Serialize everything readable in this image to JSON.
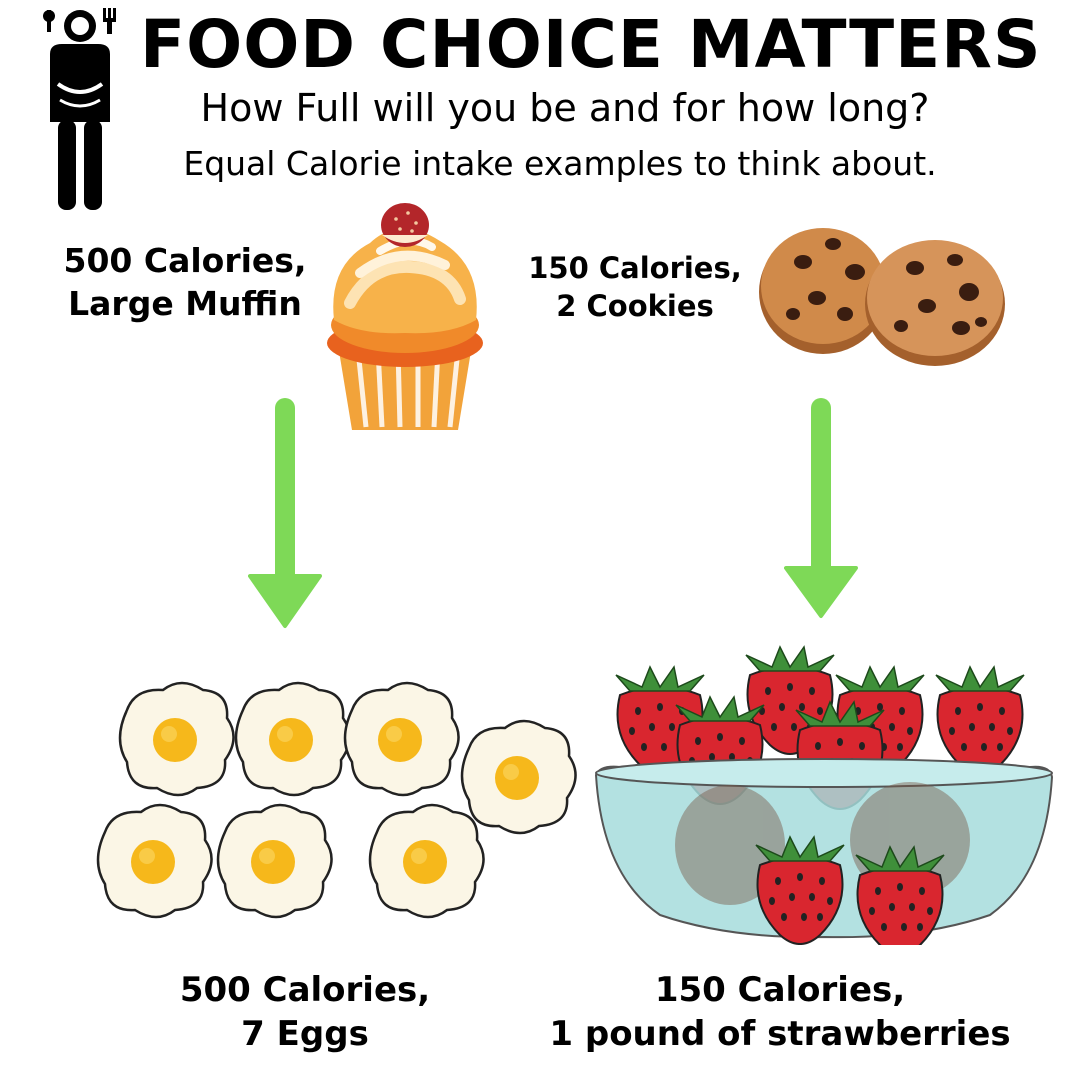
{
  "header": {
    "title": "FOOD CHOICE MATTERS",
    "subtitle": "How Full will you be and for how long?",
    "tagline": "Equal Calorie intake examples to think about."
  },
  "foods": {
    "muffin": {
      "line1": "500 Calories,",
      "line2": "Large Muffin"
    },
    "cookies": {
      "line1": "150 Calories,",
      "line2": "2 Cookies"
    },
    "eggs": {
      "line1": "500 Calories,",
      "line2": "7 Eggs"
    },
    "strawberries": {
      "line1": "150 Calories,",
      "line2": "1 pound of strawberries"
    }
  },
  "colors": {
    "arrow": "#7ed957",
    "strawberry": "#d9262f",
    "bowl": "#a6dcdc",
    "yolk": "#f6b81b",
    "cookie": "#d08a4a"
  },
  "icons": [
    "person-dining-icon",
    "down-arrow-icon"
  ]
}
